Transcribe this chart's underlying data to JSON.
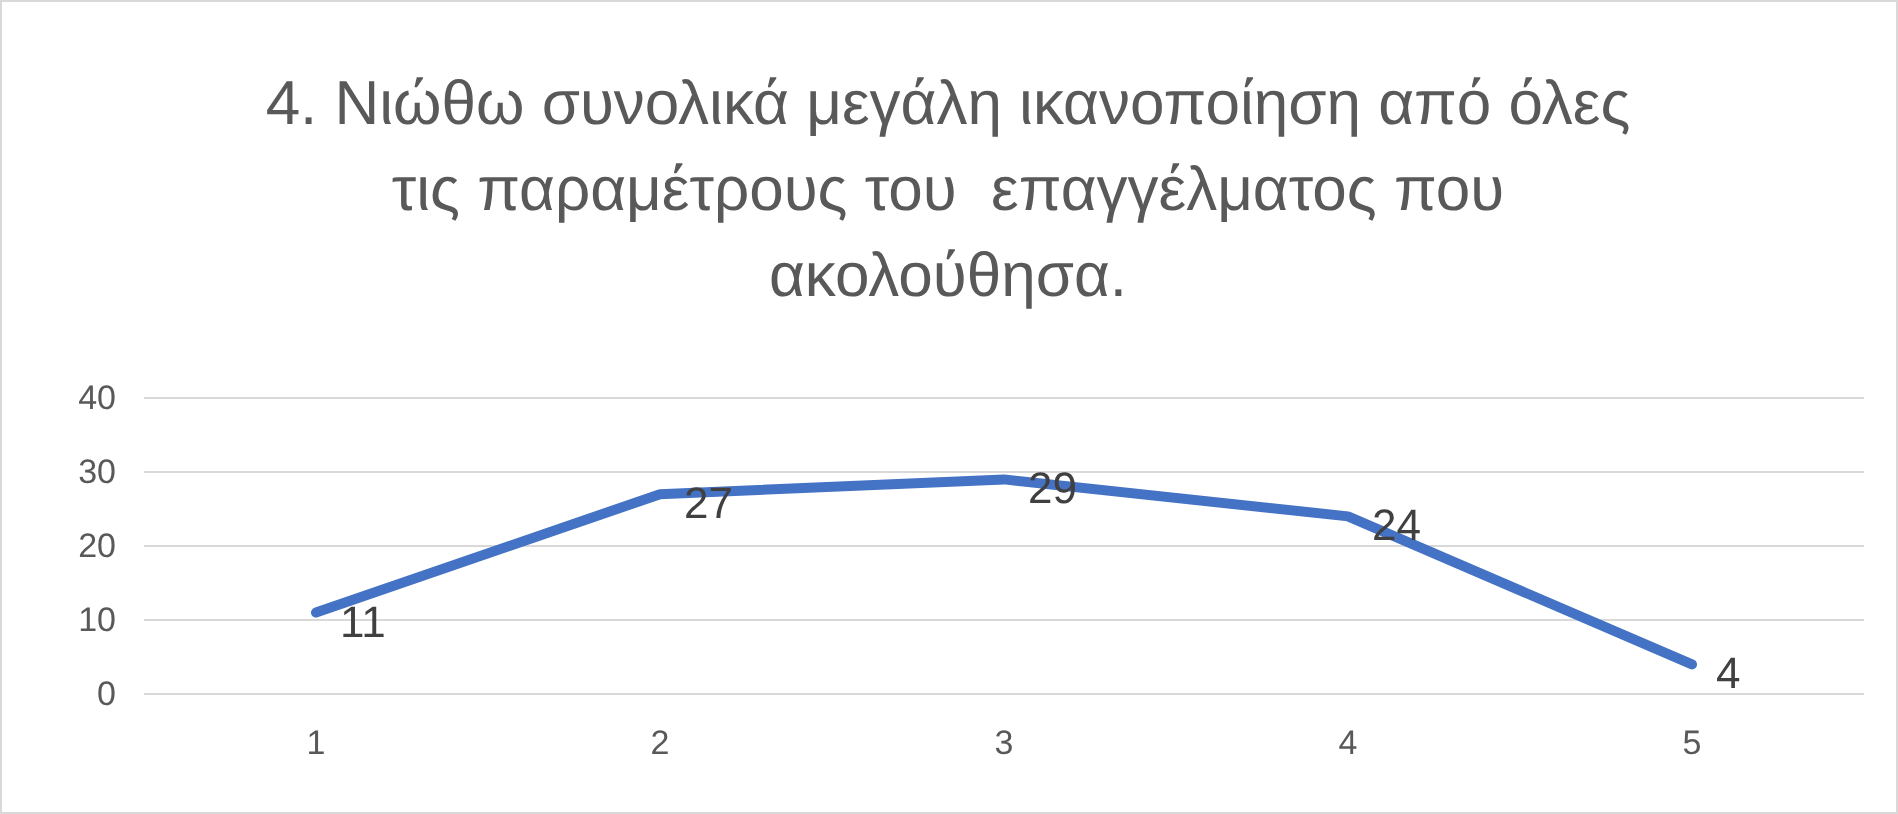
{
  "chart_data": {
    "type": "line",
    "title": "4. Νιώθω συνολικά μεγάλη ικανοποίηση από όλες τις παραμέτρους του  επαγγέλματος που ακολούθησα.",
    "categories": [
      "1",
      "2",
      "3",
      "4",
      "5"
    ],
    "series": [
      {
        "color": "#4472c4",
        "values": [
          11,
          27,
          29,
          24,
          4
        ]
      }
    ],
    "ylim": [
      0,
      40
    ],
    "yticks": [
      0,
      10,
      20,
      30,
      40
    ],
    "grid": "y",
    "data_labels": true
  }
}
